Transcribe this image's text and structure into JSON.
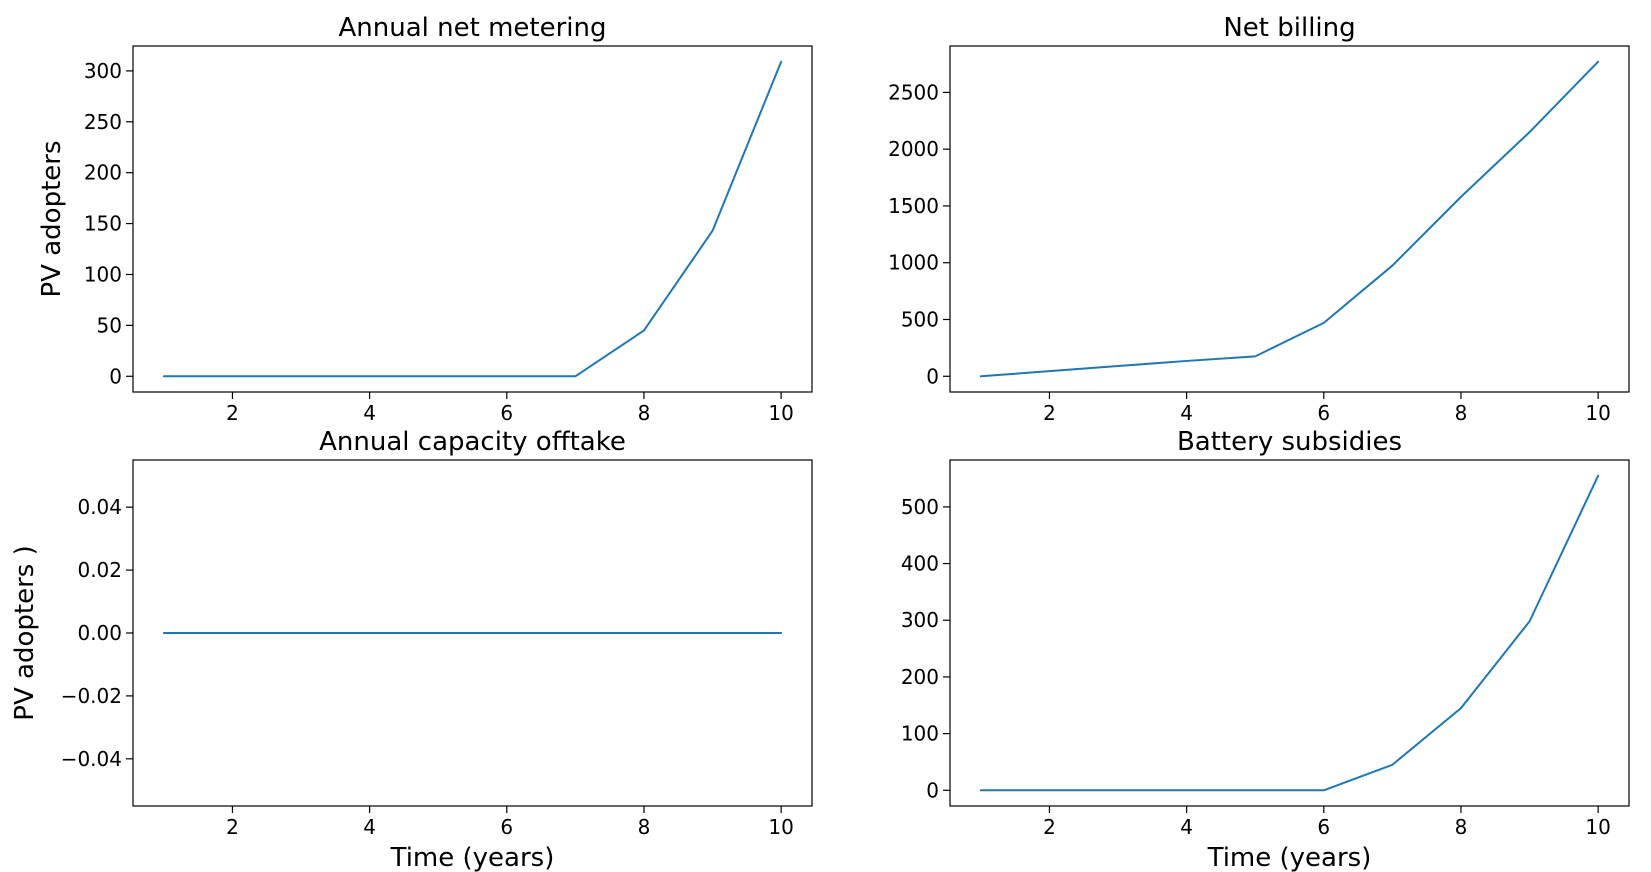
{
  "chart_data": [
    {
      "type": "line",
      "title": "Annual net metering",
      "xlabel": "",
      "ylabel": "PV adopters",
      "x": [
        1,
        2,
        3,
        4,
        5,
        6,
        7,
        8,
        9,
        10
      ],
      "series": [
        {
          "values": [
            0,
            0,
            0,
            0,
            0,
            0,
            0,
            45,
            143,
            309
          ],
          "color": "#1f77b4"
        }
      ],
      "xlim": [
        0.55,
        10.45
      ],
      "ylim": [
        -15.45,
        324.45
      ],
      "xticks": [
        2,
        4,
        6,
        8,
        10
      ],
      "xtick_labels": [
        "2",
        "4",
        "6",
        "8",
        "10"
      ],
      "yticks": [
        0,
        50,
        100,
        150,
        200,
        250,
        300
      ],
      "ytick_labels": [
        "0",
        "50",
        "100",
        "150",
        "200",
        "250",
        "300"
      ],
      "grid": false
    },
    {
      "type": "line",
      "title": "Net billing",
      "xlabel": "",
      "ylabel": "",
      "x": [
        1,
        2,
        3,
        4,
        5,
        6,
        7,
        8,
        9,
        10
      ],
      "series": [
        {
          "values": [
            0,
            45,
            90,
            135,
            175,
            470,
            975,
            1580,
            2150,
            2770
          ],
          "color": "#1f77b4"
        }
      ],
      "xlim": [
        0.55,
        10.45
      ],
      "ylim": [
        -138.5,
        2908.5
      ],
      "xticks": [
        2,
        4,
        6,
        8,
        10
      ],
      "xtick_labels": [
        "2",
        "4",
        "6",
        "8",
        "10"
      ],
      "yticks": [
        0,
        500,
        1000,
        1500,
        2000,
        2500
      ],
      "ytick_labels": [
        "0",
        "500",
        "1000",
        "1500",
        "2000",
        "2500"
      ],
      "grid": false
    },
    {
      "type": "line",
      "title": "Annual capacity offtake",
      "xlabel": "Time (years)",
      "ylabel": "PV adopters )",
      "x": [
        1,
        2,
        3,
        4,
        5,
        6,
        7,
        8,
        9,
        10
      ],
      "series": [
        {
          "values": [
            0,
            0,
            0,
            0,
            0,
            0,
            0,
            0,
            0,
            0
          ],
          "color": "#1f77b4"
        }
      ],
      "xlim": [
        0.55,
        10.45
      ],
      "ylim": [
        -0.055,
        0.055
      ],
      "xticks": [
        2,
        4,
        6,
        8,
        10
      ],
      "xtick_labels": [
        "2",
        "4",
        "6",
        "8",
        "10"
      ],
      "yticks": [
        -0.04,
        -0.02,
        0.0,
        0.02,
        0.04
      ],
      "ytick_labels": [
        "−0.04",
        "−0.02",
        "0.00",
        "0.02",
        "0.04"
      ],
      "grid": false
    },
    {
      "type": "line",
      "title": "Battery subsidies",
      "xlabel": "Time (years)",
      "ylabel": "",
      "x": [
        1,
        2,
        3,
        4,
        5,
        6,
        7,
        8,
        9,
        10
      ],
      "series": [
        {
          "values": [
            0,
            0,
            0,
            0,
            0,
            0,
            45,
            145,
            298,
            555
          ],
          "color": "#1f77b4"
        }
      ],
      "xlim": [
        0.55,
        10.45
      ],
      "ylim": [
        -27.75,
        582.75
      ],
      "xticks": [
        2,
        4,
        6,
        8,
        10
      ],
      "xtick_labels": [
        "2",
        "4",
        "6",
        "8",
        "10"
      ],
      "yticks": [
        0,
        100,
        200,
        300,
        400,
        500
      ],
      "ytick_labels": [
        "0",
        "100",
        "200",
        "300",
        "400",
        "500"
      ],
      "grid": false
    }
  ]
}
